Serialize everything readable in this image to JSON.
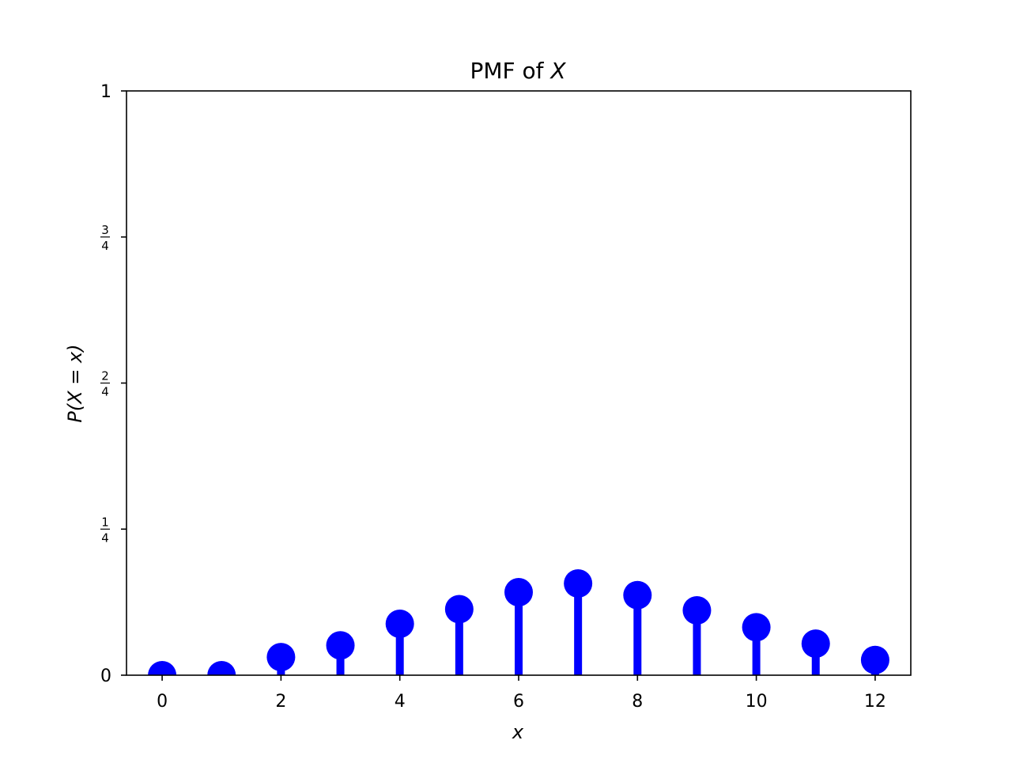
{
  "chart_data": {
    "type": "stem",
    "title_prefix": "PMF of ",
    "title_var": "X",
    "xlabel": "x",
    "ylabel": "P(X = x)",
    "xlim": [
      -0.6,
      12.6
    ],
    "ylim": [
      0,
      1
    ],
    "x_ticks": [
      {
        "value": 0,
        "label": "0"
      },
      {
        "value": 2,
        "label": "2"
      },
      {
        "value": 4,
        "label": "4"
      },
      {
        "value": 6,
        "label": "6"
      },
      {
        "value": 8,
        "label": "8"
      },
      {
        "value": 10,
        "label": "10"
      },
      {
        "value": 12,
        "label": "12"
      }
    ],
    "y_ticks": [
      {
        "value": 0,
        "label": "0",
        "kind": "plain"
      },
      {
        "value": 0.25,
        "num": "1",
        "den": "4",
        "kind": "frac"
      },
      {
        "value": 0.5,
        "num": "2",
        "den": "4",
        "kind": "frac"
      },
      {
        "value": 0.75,
        "num": "3",
        "den": "4",
        "kind": "frac"
      },
      {
        "value": 1,
        "label": "1",
        "kind": "plain"
      }
    ],
    "x": [
      0,
      1,
      2,
      3,
      4,
      5,
      6,
      7,
      8,
      9,
      10,
      11,
      12
    ],
    "values": [
      0.0,
      0.0,
      0.031,
      0.051,
      0.088,
      0.113,
      0.142,
      0.157,
      0.137,
      0.111,
      0.082,
      0.054,
      0.026
    ],
    "color": "#0000ff",
    "grid": false
  }
}
